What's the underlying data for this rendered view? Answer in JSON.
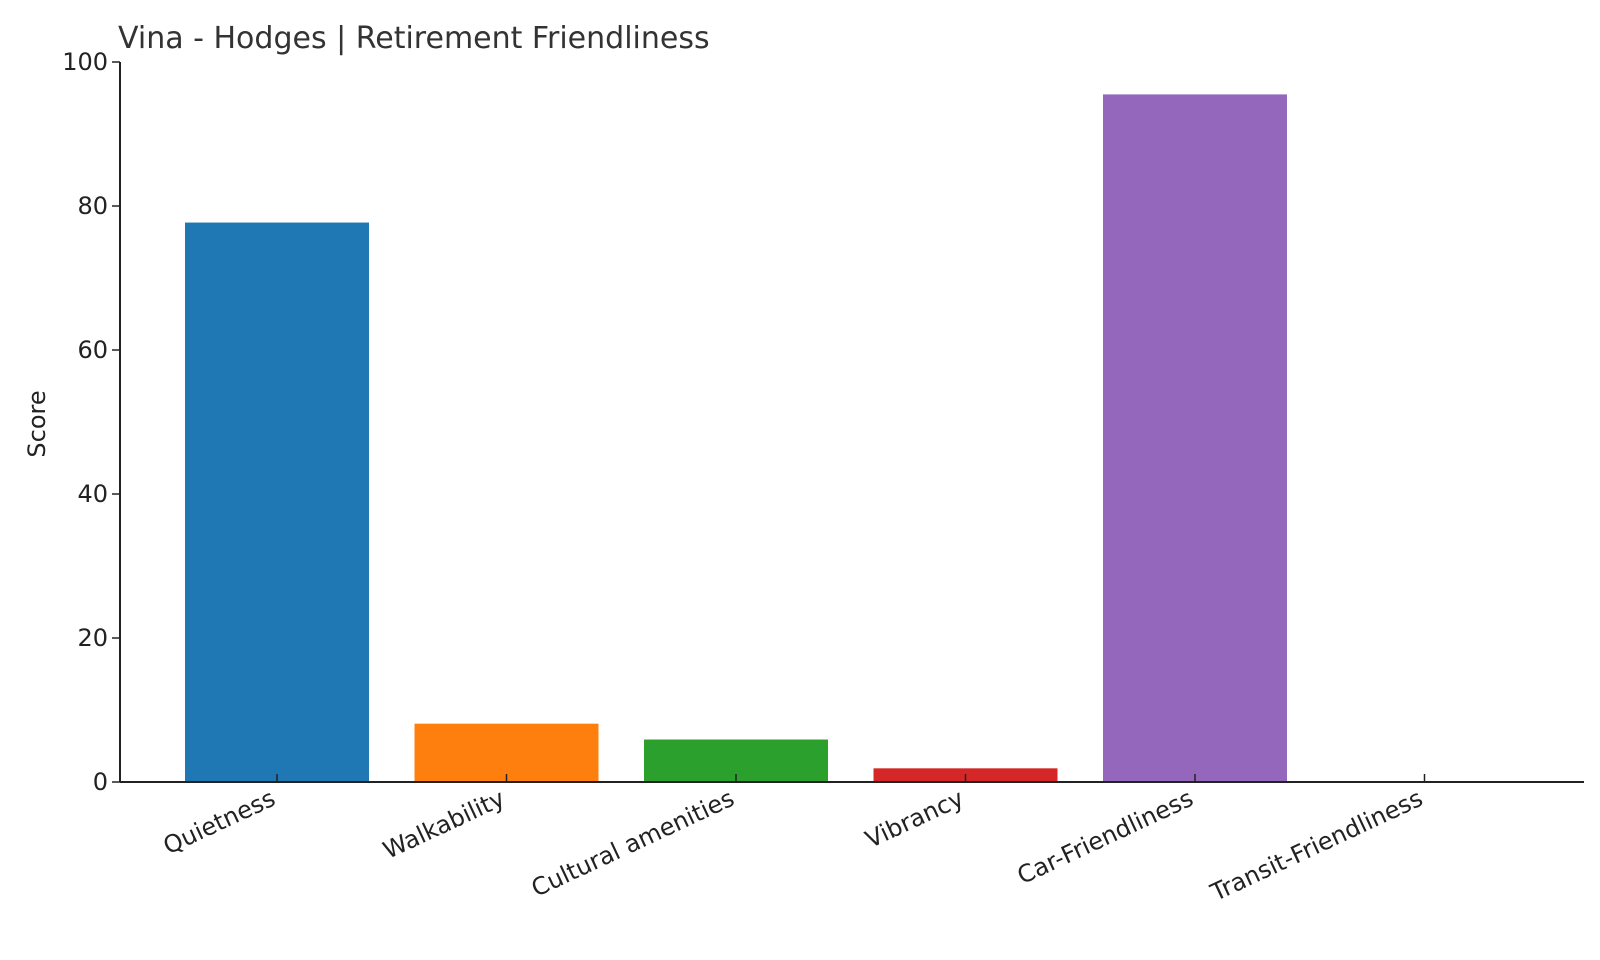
{
  "chart_data": {
    "type": "bar",
    "title": "Vina - Hodges | Retirement Friendliness",
    "xlabel": "",
    "ylabel": "Score",
    "ylim": [
      0,
      100
    ],
    "yticks": [
      0,
      20,
      40,
      60,
      80,
      100
    ],
    "categories": [
      "Quietness",
      "Walkability",
      "Cultural amenities",
      "Vibrancy",
      "Car-Friendliness",
      "Transit-Friendliness"
    ],
    "values": [
      77.7,
      8.1,
      5.9,
      1.9,
      95.5,
      0
    ],
    "colors": [
      "#1f77b4",
      "#ff7f0e",
      "#2ca02c",
      "#d62728",
      "#9467bd",
      "#8c564b"
    ],
    "grid": false,
    "legend": "none"
  }
}
